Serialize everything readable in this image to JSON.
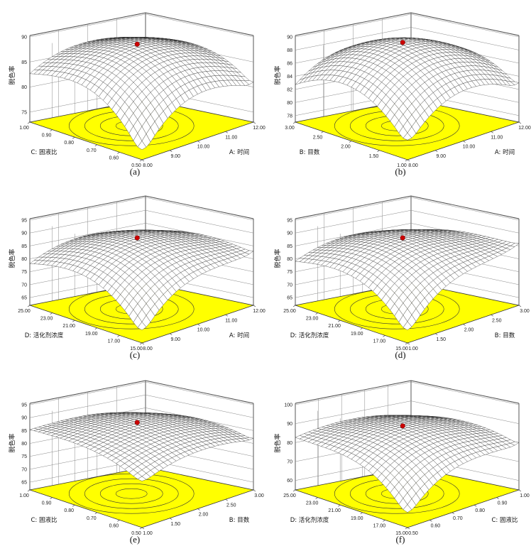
{
  "chart_data": [
    {
      "panel": "(a)",
      "type": "surface3d",
      "zlabel": "脱色率",
      "zticks": [
        "75",
        "80",
        "85",
        "90"
      ],
      "zlim": [
        73,
        90
      ],
      "xlabel": "A: 时间",
      "xticks": [
        "8.00",
        "9.00",
        "10.00",
        "11.00",
        "12.00"
      ],
      "ylabel": "C: 固液比",
      "yticks": [
        "0.50",
        "0.60",
        "0.70",
        "0.80",
        "0.90",
        "1.00"
      ],
      "peak_value": 89,
      "corner_values": [
        75,
        81,
        82,
        85
      ],
      "min_value": 73
    },
    {
      "panel": "(b)",
      "type": "surface3d",
      "zlabel": "脱色率",
      "zticks": [
        "78",
        "80",
        "82",
        "84",
        "86",
        "88",
        "90"
      ],
      "zlim": [
        77,
        90
      ],
      "xlabel": "A: 时间",
      "xticks": [
        "8.00",
        "9.00",
        "10.00",
        "11.00",
        "12.00"
      ],
      "ylabel": "B: 目数",
      "yticks": [
        "1.00",
        "1.50",
        "2.00",
        "2.50",
        "3.00"
      ],
      "peak_value": 89.5,
      "corner_values": [
        80,
        83,
        82,
        84
      ],
      "min_value": 80
    },
    {
      "panel": "(c)",
      "type": "surface3d",
      "zlabel": "脱色率",
      "zticks": [
        "65",
        "70",
        "75",
        "80",
        "85",
        "90",
        "95"
      ],
      "zlim": [
        62,
        95
      ],
      "xlabel": "A: 时间",
      "xticks": [
        "8.00",
        "9.00",
        "10.00",
        "11.00",
        "12.00"
      ],
      "ylabel": "D: 活化剂浓度",
      "yticks": [
        "15.00",
        "17.00",
        "19.00",
        "21.00",
        "23.00",
        "25.00"
      ],
      "peak_value": 89,
      "corner_values": [
        67,
        83,
        77,
        80
      ],
      "min_value": 67
    },
    {
      "panel": "(d)",
      "type": "surface3d",
      "zlabel": "脱色率",
      "zticks": [
        "65",
        "70",
        "75",
        "80",
        "85",
        "90",
        "95"
      ],
      "zlim": [
        62,
        95
      ],
      "xlabel": "B: 目数",
      "xticks": [
        "1.00",
        "1.50",
        "2.00",
        "2.50",
        "3.00"
      ],
      "ylabel": "D: 活化剂浓度",
      "yticks": [
        "15.00",
        "17.00",
        "19.00",
        "21.00",
        "23.00",
        "25.00"
      ],
      "peak_value": 89,
      "corner_values": [
        67,
        86,
        78,
        80
      ],
      "min_value": 67
    },
    {
      "panel": "(e)",
      "type": "surface3d",
      "zlabel": "脱色率",
      "zticks": [
        "65",
        "70",
        "75",
        "80",
        "85",
        "90",
        "95"
      ],
      "zlim": [
        62,
        95
      ],
      "xlabel": "B: 目数",
      "xticks": [
        "1.00",
        "1.50",
        "2.00",
        "2.50",
        "3.00"
      ],
      "ylabel": "C: 固液比",
      "yticks": [
        "0.50",
        "0.60",
        "0.70",
        "0.80",
        "0.90",
        "1.00"
      ],
      "peak_value": 89,
      "corner_values": [
        80,
        82,
        85,
        81
      ],
      "min_value": 80
    },
    {
      "panel": "(f)",
      "type": "surface3d",
      "zlabel": "脱色率",
      "zticks": [
        "60",
        "70",
        "80",
        "90",
        "100"
      ],
      "zlim": [
        55,
        100
      ],
      "xlabel": "C: 固液比",
      "xticks": [
        "0.50",
        "0.60",
        "0.70",
        "0.80",
        "0.90",
        "1.00"
      ],
      "ylabel": "D: 活化剂浓度",
      "yticks": [
        "15.00",
        "17.00",
        "19.00",
        "21.00",
        "23.00",
        "25.00"
      ],
      "peak_value": 90,
      "corner_values": [
        63,
        80,
        82,
        81
      ],
      "min_value": 63
    }
  ],
  "style": {
    "floor_color": "#ffff00",
    "mesh_color": "#222222",
    "marker_color": "#cc0000",
    "box_color": "#333333"
  }
}
